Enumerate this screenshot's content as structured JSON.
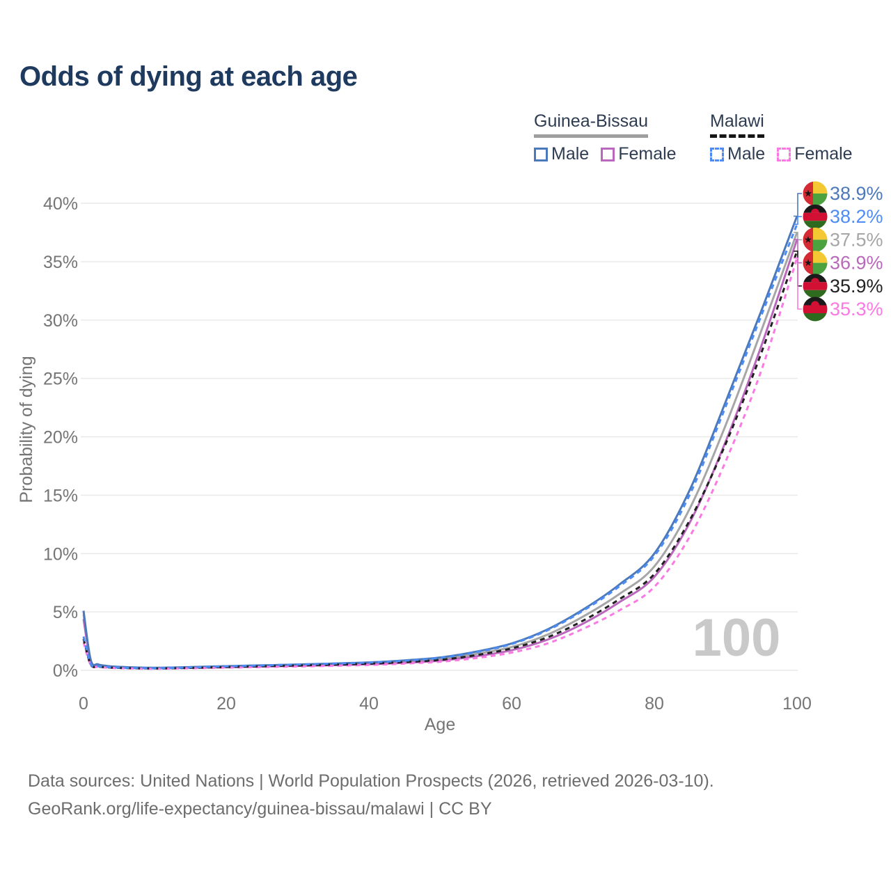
{
  "title": "Odds of dying at each age",
  "legend": {
    "groups": [
      {
        "title": "Guinea-Bissau",
        "line_style": "solid",
        "items": [
          {
            "label": "Male",
            "series": "gb-male"
          },
          {
            "label": "Female",
            "series": "gb-female"
          }
        ]
      },
      {
        "title": "Malawi",
        "line_style": "dashed",
        "items": [
          {
            "label": "Male",
            "series": "mw-male"
          },
          {
            "label": "Female",
            "series": "mw-female"
          }
        ]
      }
    ]
  },
  "footer": {
    "line1": "Data sources: United Nations | World Population Prospects (2026, retrieved 2026-03-10).",
    "line2": "GeoRank.org/life-expectancy/guinea-bissau/malawi | CC BY"
  },
  "chart_data": {
    "type": "line",
    "title": "Odds of dying at each age",
    "xlabel": "Age",
    "ylabel": "Probability of dying",
    "xlim": [
      0,
      100
    ],
    "ylim": [
      0,
      40
    ],
    "x_ticks": [
      0,
      20,
      40,
      60,
      80,
      100
    ],
    "y_ticks": [
      0,
      5,
      10,
      15,
      20,
      25,
      30,
      35,
      40
    ],
    "y_tick_suffix": "%",
    "grid": "horizontal",
    "legend_position": "top-right",
    "watermark": "100",
    "colors": {
      "grid": "#e8e8e8",
      "axis_text": "#757575",
      "watermark": "#c9c9c9",
      "title": "#1e3a5f",
      "legend_text": "#2e3c52",
      "underline_solid": "#9e9e9e",
      "underline_dashed": "#161616"
    },
    "ages": [
      0,
      1,
      2,
      3,
      5,
      10,
      15,
      20,
      25,
      30,
      35,
      40,
      45,
      50,
      55,
      60,
      65,
      70,
      75,
      80,
      85,
      90,
      95,
      100
    ],
    "series": [
      {
        "id": "gb-male",
        "name": "Guinea-Bissau Male",
        "country": "Guinea-Bissau",
        "sex": "Male",
        "color": "#4c79ba",
        "dash": "solid",
        "flag": "guinea-bissau",
        "end_label": "38.9%",
        "z": 3,
        "values": [
          5.1,
          0.9,
          0.52,
          0.4,
          0.3,
          0.22,
          0.28,
          0.36,
          0.43,
          0.5,
          0.58,
          0.68,
          0.85,
          1.1,
          1.6,
          2.3,
          3.5,
          5.2,
          7.3,
          10.0,
          15.5,
          23.0,
          30.8,
          38.9
        ]
      },
      {
        "id": "mw-male",
        "name": "Malawi Male",
        "country": "Malawi",
        "sex": "Male",
        "color": "#4d8cf5",
        "dash": "dashed",
        "flag": "malawi",
        "end_label": "38.2%",
        "z": 6,
        "values": [
          2.9,
          0.55,
          0.36,
          0.3,
          0.23,
          0.18,
          0.25,
          0.34,
          0.42,
          0.5,
          0.58,
          0.67,
          0.83,
          1.07,
          1.55,
          2.25,
          3.42,
          5.1,
          7.15,
          9.8,
          15.1,
          22.6,
          30.4,
          38.2
        ]
      },
      {
        "id": "gb-total",
        "name": "Guinea-Bissau Both sexes",
        "country": "Guinea-Bissau",
        "sex": "Both",
        "color": "#a6a6a6",
        "dash": "solid",
        "flag": "guinea-bissau",
        "end_label": "37.5%",
        "z": 1,
        "values": [
          4.8,
          0.85,
          0.49,
          0.38,
          0.28,
          0.2,
          0.25,
          0.32,
          0.38,
          0.44,
          0.51,
          0.6,
          0.75,
          0.96,
          1.4,
          2.0,
          3.05,
          4.6,
          6.5,
          8.9,
          13.9,
          21.0,
          29.1,
          37.5
        ]
      },
      {
        "id": "gb-female",
        "name": "Guinea-Bissau Female",
        "country": "Guinea-Bissau",
        "sex": "Female",
        "color": "#b968bc",
        "dash": "solid",
        "flag": "guinea-bissau",
        "end_label": "36.9%",
        "z": 2,
        "values": [
          4.4,
          0.8,
          0.46,
          0.35,
          0.26,
          0.19,
          0.22,
          0.27,
          0.33,
          0.38,
          0.44,
          0.52,
          0.65,
          0.83,
          1.2,
          1.72,
          2.62,
          4.0,
          5.8,
          8.0,
          12.7,
          19.6,
          27.8,
          36.9
        ]
      },
      {
        "id": "mw-total",
        "name": "Malawi Both sexes",
        "country": "Malawi",
        "sex": "Both",
        "color": "#212121",
        "dash": "dashed",
        "flag": "malawi",
        "end_label": "35.9%",
        "z": 5,
        "values": [
          2.7,
          0.5,
          0.33,
          0.27,
          0.21,
          0.16,
          0.21,
          0.28,
          0.35,
          0.42,
          0.49,
          0.57,
          0.71,
          0.9,
          1.3,
          1.88,
          2.82,
          4.25,
          6.05,
          8.25,
          12.9,
          19.4,
          27.2,
          35.9
        ]
      },
      {
        "id": "mw-female",
        "name": "Malawi Female",
        "country": "Malawi",
        "sex": "Female",
        "color": "#fb79e3",
        "dash": "dashed",
        "flag": "malawi",
        "end_label": "35.3%",
        "z": 4,
        "values": [
          2.4,
          0.46,
          0.3,
          0.24,
          0.18,
          0.14,
          0.18,
          0.23,
          0.28,
          0.33,
          0.39,
          0.46,
          0.58,
          0.74,
          1.05,
          1.52,
          2.3,
          3.55,
          5.1,
          7.15,
          11.5,
          17.9,
          25.7,
          35.3
        ]
      }
    ],
    "flag_colors": {
      "guinea-bissau": {
        "red": "#d42a33",
        "yellow": "#f3c832",
        "green": "#4ba23f",
        "star": "#151515"
      },
      "malawi": {
        "black": "#1a1a1a",
        "red": "#d21034",
        "green": "#2e6b1e"
      }
    }
  }
}
